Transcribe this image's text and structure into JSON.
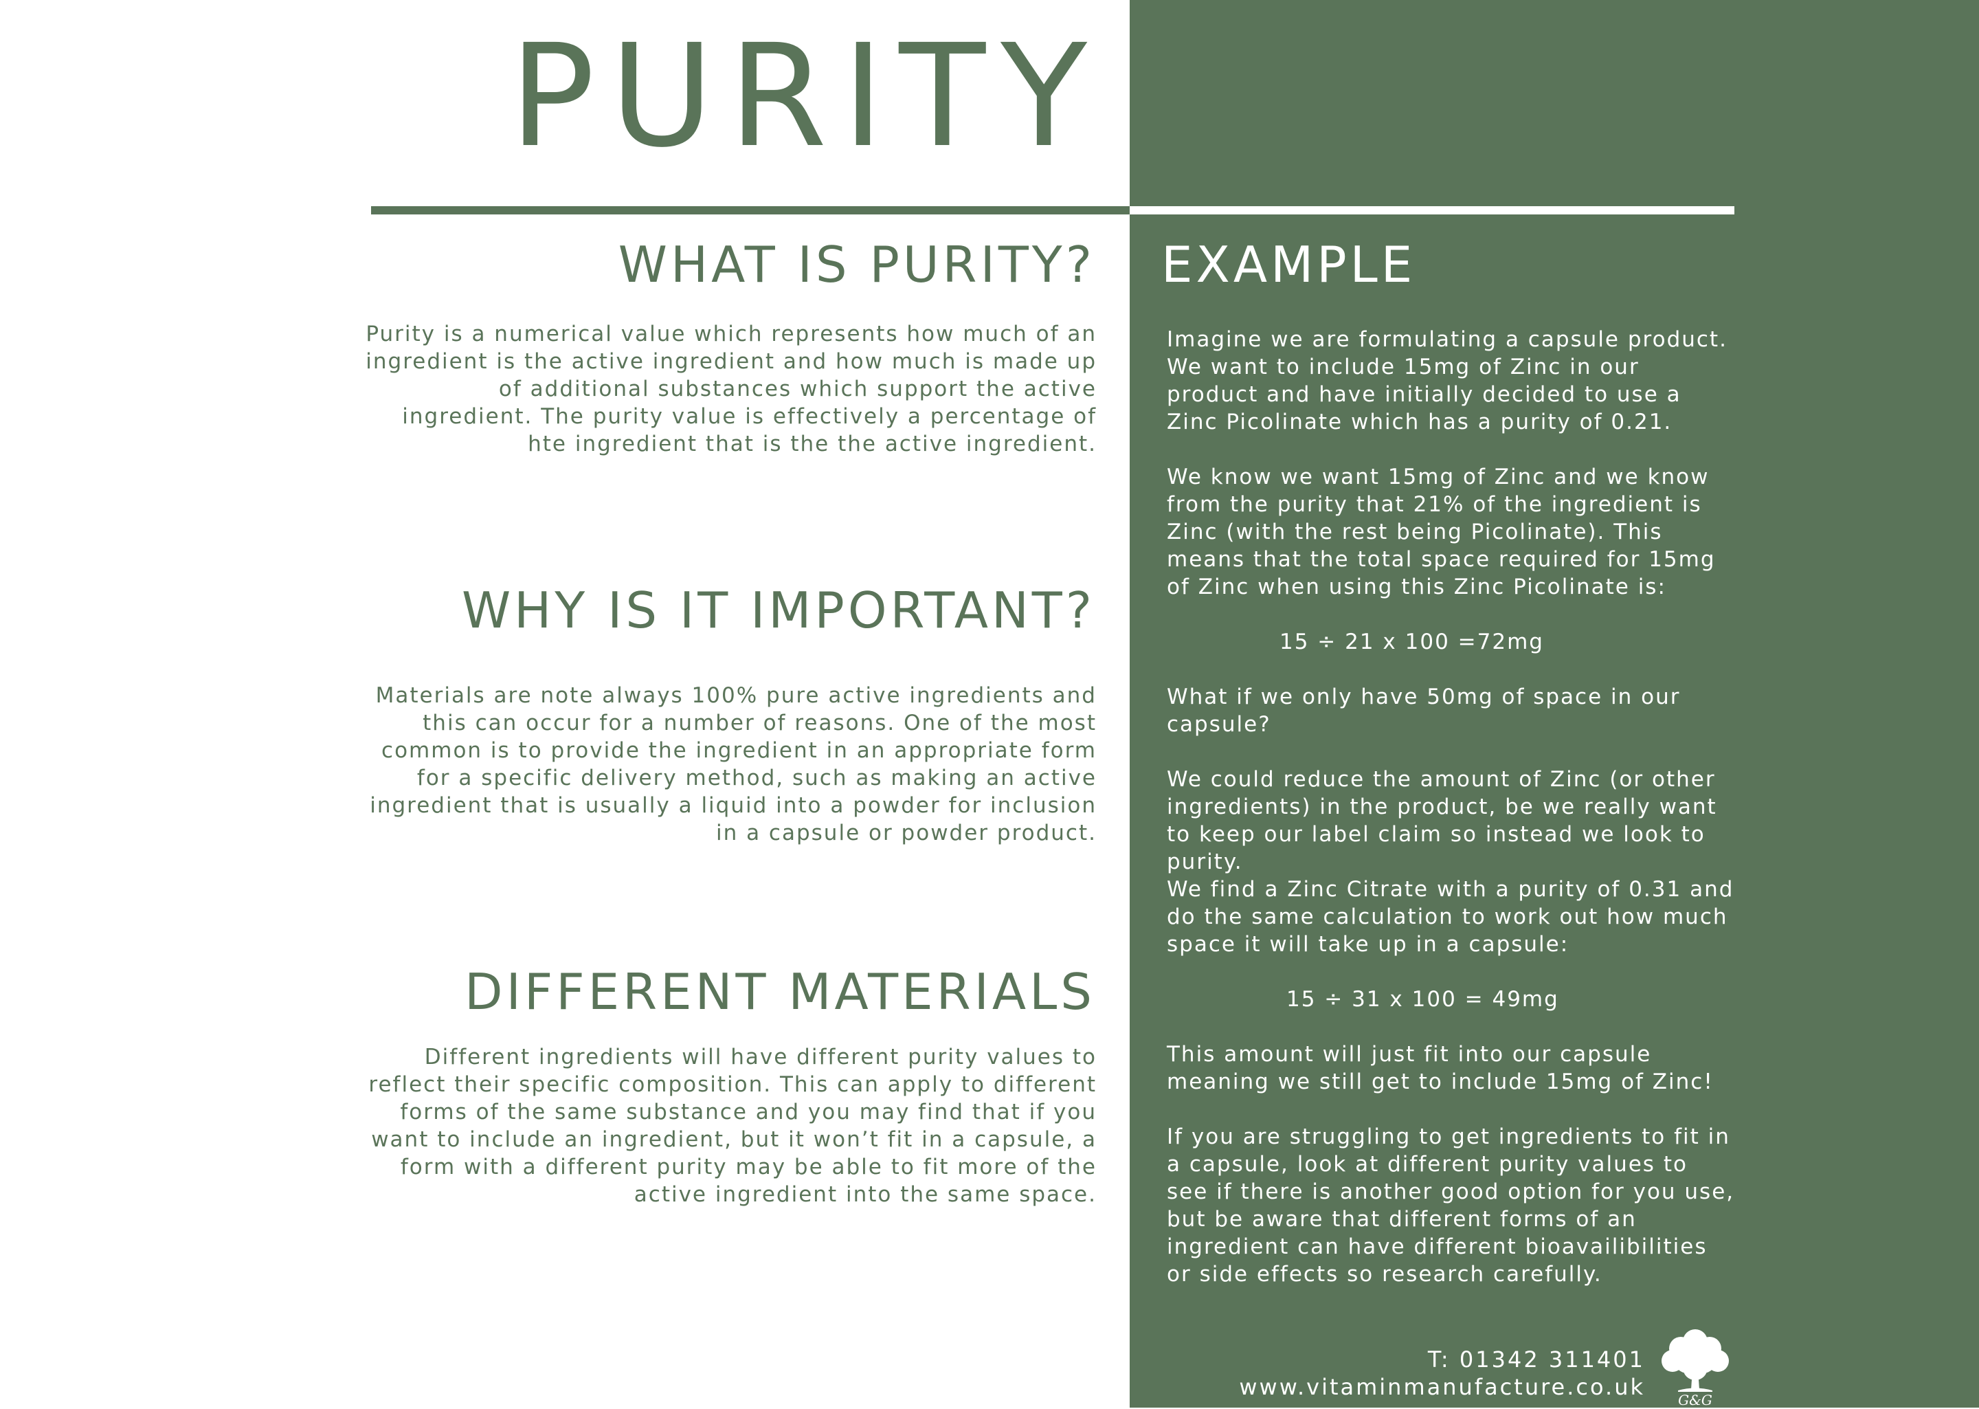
{
  "title": "PURITY",
  "colors": {
    "brand_green": "#5a7459",
    "white": "#ffffff"
  },
  "left": {
    "what_heading": "WHAT IS PURITY?",
    "what_text": "Purity is a numerical value which represents how much of an ingredient is the active ingredient and how much is made up of additional substances which support the active ingredient. The purity value is effectively a percentage of hte ingredient that is the the active ingredient.",
    "why_heading": "WHY IS IT IMPORTANT?",
    "why_text": "Materials are note always 100% pure active ingredients and this can occur for a number of reasons. One of the most common is to provide the ingredient in an appropriate form for a specific delivery method, such as making an active ingredient that is usually a liquid into a powder for inclusion in a capsule or powder product.",
    "materials_heading": "DIFFERENT MATERIALS",
    "materials_text": "Different ingredients will have different purity values to reflect their specific composition. This can apply to different forms of the same substance and you may find that if you want to include an ingredient, but it won’t fit in a capsule, a form with a different purity may be able to fit more of the active ingredient into the same space."
  },
  "example": {
    "heading": "EXAMPLE",
    "p1": "Imagine we are formulating a capsule product. We want to include 15mg of Zinc in our product and have initially decided to use a Zinc Picolinate which has a purity of 0.21.",
    "p2": "We know we want 15mg of Zinc and we know from the purity that 21% of the ingredient is Zinc (with the rest being Picolinate). This means that the total space required for 15mg of Zinc when using this Zinc Picolinate is:",
    "calc1": "15 ÷ 21 x 100 =72mg",
    "p3": "What if we only have 50mg of space in our capsule?",
    "p4": "We could reduce the amount of Zinc (or other ingredients) in the product, be we really want to keep our label claim so instead we look to purity.",
    "p5": "We find a Zinc Citrate with a purity of 0.31 and do the same calculation to work out how much space it will take up in a capsule:",
    "calc2": "15 ÷ 31 x 100 = 49mg",
    "p6": "This amount will just fit into our capsule meaning we still get to include 15mg of Zinc!",
    "p7": "If you are struggling to get ingredients to fit in a capsule, look at different purity values to see if there is another good option for you use, but be aware that different forms of an ingredient can have different bioavailibilities or side effects so research carefully."
  },
  "footer": {
    "phone": "T: 01342 311401",
    "website": "www.vitaminmanufacture.co.uk",
    "logo_icon": "tree-logo-icon",
    "logo_text": "G&G"
  }
}
